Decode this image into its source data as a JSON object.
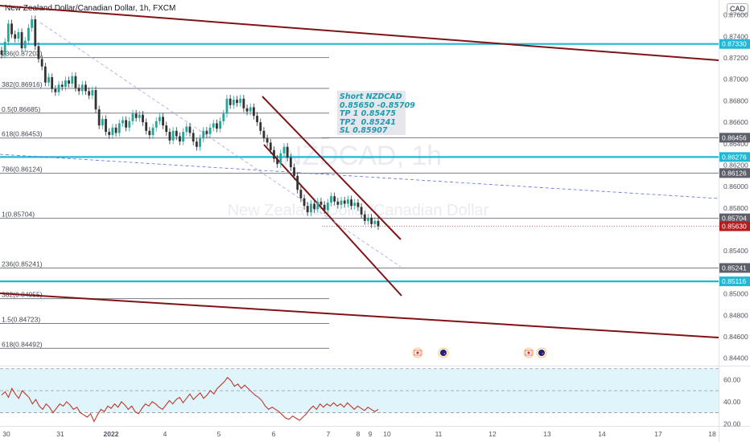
{
  "header": {
    "symbol_title": "New Zealand Dollar/Canadian Dollar, 1h, FXCM",
    "currency": "CAD"
  },
  "watermark": {
    "symbol": "NZDCAD, 1h",
    "name": "New Zealand Dollar/Canadian Dollar"
  },
  "trade_note": {
    "lines": [
      "Short NZDCAD",
      "0.85650 -0.85709",
      "TP 1 0.85475",
      "TP2  0.85241",
      "SL 0.85907"
    ],
    "color": "#1c9bb0"
  },
  "colors": {
    "channel": "#7f1416",
    "level_cyan": "#20b8d6",
    "level_gray": "#787b86",
    "last_price": "#b71c1c",
    "candle": "#26a69a",
    "rsi_line": "#c0392b",
    "rsi_band": "#dff4fb"
  },
  "chart_data": [
    {
      "type": "line",
      "title": "New Zealand Dollar/Canadian Dollar, 1h, FXCM",
      "x_ticks": [
        "30",
        "31",
        "2022",
        "4",
        "5",
        "6",
        "7",
        "8",
        "9",
        "10",
        "11",
        "12",
        "13",
        "14",
        "17",
        "18"
      ],
      "y_ticks": [
        "0.87600",
        "0.87400",
        "0.87200",
        "0.87000",
        "0.86800",
        "0.86600",
        "0.86400",
        "0.86200",
        "0.86000",
        "0.85800",
        "0.85400",
        "0.85000",
        "0.84800",
        "0.84600",
        "0.84400"
      ],
      "ylim": [
        0.8433,
        0.8774
      ],
      "price_labels": [
        {
          "value": "0.87330",
          "style": "cyan"
        },
        {
          "value": "0.86456",
          "style": "gray"
        },
        {
          "value": "0.86276",
          "style": "cyan"
        },
        {
          "value": "0.86126",
          "style": "gray"
        },
        {
          "value": "0.85704",
          "style": "gray"
        },
        {
          "value": "0.85630",
          "style": "last"
        },
        {
          "value": "0.85241",
          "style": "gray"
        },
        {
          "value": "0.85116",
          "style": "cyan"
        }
      ],
      "fib_levels": [
        {
          "label": "236(0.87203)",
          "value": 0.87203
        },
        {
          "label": "382(0.86916)",
          "value": 0.86916
        },
        {
          "label": "0.5(0.86685)",
          "value": 0.86685
        },
        {
          "label": "618(0.86453)",
          "value": 0.86453
        },
        {
          "label": "786(0.86124)",
          "value": 0.86124
        },
        {
          "label": "1(0.85704)",
          "value": 0.85704
        },
        {
          "label": "236(0.85241)",
          "value": 0.85241
        },
        {
          "label": "382(0.84955)",
          "value": 0.84955
        },
        {
          "label": "1.5(0.84723)",
          "value": 0.84723
        },
        {
          "label": "618(0.84492)",
          "value": 0.84492
        }
      ],
      "horizontal_levels": [
        0.8733,
        0.86276,
        0.85116
      ],
      "last_price": 0.8563,
      "price_series": {
        "name": "",
        "values": [
          0.8723,
          0.8735,
          0.8752,
          0.8742,
          0.8738,
          0.8744,
          0.8729,
          0.8736,
          0.8748,
          0.8756,
          0.8731,
          0.8719,
          0.8712,
          0.8697,
          0.8702,
          0.8691,
          0.8688,
          0.8695,
          0.8693,
          0.8699,
          0.8696,
          0.8703,
          0.8692,
          0.8689,
          0.8695,
          0.8689,
          0.8685,
          0.869,
          0.8672,
          0.8657,
          0.8663,
          0.8651,
          0.8648,
          0.8655,
          0.865,
          0.8659,
          0.8662,
          0.8655,
          0.8661,
          0.8668,
          0.8664,
          0.8667,
          0.866,
          0.8652,
          0.8648,
          0.8655,
          0.8661,
          0.8665,
          0.8657,
          0.8651,
          0.8643,
          0.8652,
          0.8647,
          0.8642,
          0.8651,
          0.8656,
          0.865,
          0.8642,
          0.8637,
          0.8645,
          0.8652,
          0.8649,
          0.8655,
          0.8659,
          0.8654,
          0.8661,
          0.8668,
          0.8682,
          0.8676,
          0.8681,
          0.8678,
          0.8682,
          0.8673,
          0.867,
          0.8674,
          0.8666,
          0.866,
          0.8652,
          0.8645,
          0.8641,
          0.8634,
          0.8626,
          0.8621,
          0.8631,
          0.8637,
          0.8627,
          0.8618,
          0.861,
          0.8597,
          0.8589,
          0.8582,
          0.8576,
          0.8584,
          0.8579,
          0.8586,
          0.8583,
          0.8578,
          0.8585,
          0.8591,
          0.8586,
          0.8583,
          0.8587,
          0.8584,
          0.8588,
          0.8582,
          0.8585,
          0.8581,
          0.8574,
          0.8568,
          0.8571,
          0.8565,
          0.8568,
          0.8563
        ]
      }
    },
    {
      "type": "line",
      "title": "",
      "y_ticks": [
        "60.00",
        "40.00",
        "20.00"
      ],
      "ylim": [
        18,
        72
      ],
      "band": [
        30,
        70
      ],
      "midline": 50,
      "rsi_series": {
        "name": "",
        "values": [
          46,
          49,
          44,
          52,
          47,
          43,
          50,
          47,
          44,
          38,
          42,
          36,
          33,
          38,
          35,
          30,
          34,
          38,
          36,
          40,
          37,
          33,
          35,
          30,
          28,
          26,
          29,
          22,
          28,
          33,
          31,
          36,
          34,
          38,
          35,
          40,
          37,
          33,
          36,
          31,
          29,
          34,
          38,
          36,
          40,
          38,
          35,
          33,
          37,
          41,
          38,
          42,
          44,
          39,
          43,
          47,
          42,
          45,
          48,
          43,
          46,
          50,
          47,
          52,
          55,
          58,
          62,
          59,
          54,
          56,
          52,
          55,
          52,
          49,
          46,
          44,
          41,
          36,
          33,
          35,
          33,
          31,
          28,
          25,
          24,
          27,
          25,
          23,
          26,
          29,
          33,
          36,
          33,
          38,
          35,
          38,
          36,
          39,
          36,
          38,
          35,
          39,
          36,
          33,
          36,
          34,
          32,
          35,
          33,
          31,
          33
        ]
      }
    }
  ],
  "event_markers": [
    "ca-flag-icon",
    "nz-flag-icon",
    "ca-flag-icon",
    "nz-flag-icon"
  ]
}
